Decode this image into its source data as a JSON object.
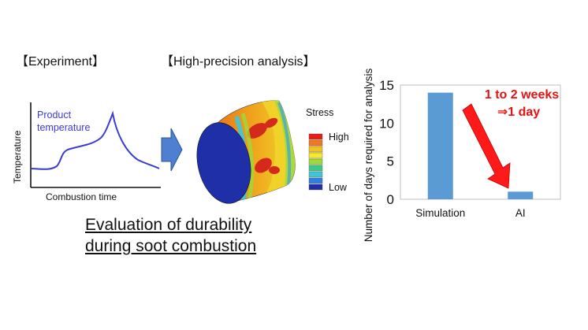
{
  "experiment": {
    "heading": "【Experiment】",
    "y_axis_label": "Temperature",
    "x_axis_label": "Combustion time",
    "curve_label_line1": "Product",
    "curve_label_line2": "temperature"
  },
  "analysis": {
    "heading": "【High-precision analysis】",
    "legend_title": "Stress",
    "legend_high": "High",
    "legend_low": "Low"
  },
  "caption": {
    "line1": "Evaluation of durability",
    "line2": "during soot combustion"
  },
  "colors": {
    "curve": "#3b3bd6",
    "arrow_block": "#4f7fd0",
    "bar": "#5b9bd5",
    "annotation": "#e81010"
  },
  "chart_data": {
    "type": "bar",
    "categories": [
      "Simulation",
      "AI"
    ],
    "values": [
      14,
      1
    ],
    "ylabel": "Number of days required for analysis",
    "xlabel": "",
    "ylim": [
      0,
      15
    ],
    "yticks": [
      "0",
      "5",
      "10",
      "15"
    ],
    "grid": false,
    "annotation": {
      "line1": "1 to 2 weeks",
      "line2": "⇒1 day"
    }
  }
}
